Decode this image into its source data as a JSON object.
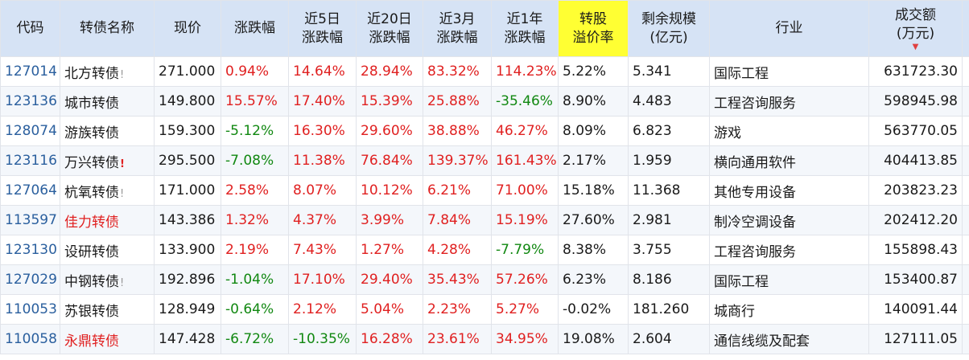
{
  "headers": {
    "code": "代码",
    "name": "转债名称",
    "price": "现价",
    "change": "涨跌幅",
    "chg5_l1": "近5日",
    "chg5_l2": "涨跌幅",
    "chg20_l1": "近20日",
    "chg20_l2": "涨跌幅",
    "chg3m_l1": "近3月",
    "chg3m_l2": "涨跌幅",
    "chg1y_l1": "近1年",
    "chg1y_l2": "涨跌幅",
    "premium_l1": "转股",
    "premium_l2": "溢价率",
    "remain_l1": "剩余规模",
    "remain_l2": "(亿元)",
    "industry": "行业",
    "volume_l1": "成交额",
    "volume_l2": "(万元)",
    "sort_icon": "▼"
  },
  "highlight_color": "#ffff33",
  "rows": [
    {
      "code": "127014",
      "name": "北方转债",
      "flag": "!",
      "flag_strong": false,
      "name_red": false,
      "price": "271.000",
      "change": "0.94%",
      "chg5": "14.64%",
      "chg20": "28.94%",
      "chg3m": "83.32%",
      "chg1y": "114.23%",
      "premium": "5.22%",
      "remain": "5.341",
      "industry": "国际工程",
      "volume": "631723.30"
    },
    {
      "code": "123136",
      "name": "城市转债",
      "flag": "",
      "flag_strong": false,
      "name_red": false,
      "price": "149.800",
      "change": "15.57%",
      "chg5": "17.40%",
      "chg20": "15.39%",
      "chg3m": "25.88%",
      "chg1y": "-35.46%",
      "premium": "8.90%",
      "remain": "4.483",
      "industry": "工程咨询服务",
      "volume": "598945.98"
    },
    {
      "code": "128074",
      "name": "游族转债",
      "flag": "",
      "flag_strong": false,
      "name_red": false,
      "price": "159.300",
      "change": "-5.12%",
      "chg5": "16.30%",
      "chg20": "29.60%",
      "chg3m": "38.88%",
      "chg1y": "46.27%",
      "premium": "8.09%",
      "remain": "6.823",
      "industry": "游戏",
      "volume": "563770.05"
    },
    {
      "code": "123116",
      "name": "万兴转债",
      "flag": "!",
      "flag_strong": true,
      "name_red": false,
      "price": "295.500",
      "change": "-7.08%",
      "chg5": "11.38%",
      "chg20": "76.84%",
      "chg3m": "139.37%",
      "chg1y": "161.43%",
      "premium": "2.17%",
      "remain": "1.959",
      "industry": "横向通用软件",
      "volume": "404413.85"
    },
    {
      "code": "127064",
      "name": "杭氧转债",
      "flag": "!",
      "flag_strong": false,
      "name_red": false,
      "price": "171.000",
      "change": "2.58%",
      "chg5": "8.07%",
      "chg20": "10.12%",
      "chg3m": "6.21%",
      "chg1y": "71.00%",
      "premium": "15.18%",
      "remain": "11.368",
      "industry": "其他专用设备",
      "volume": "203823.23"
    },
    {
      "code": "113597",
      "name": "佳力转债",
      "flag": "",
      "flag_strong": false,
      "name_red": true,
      "price": "143.386",
      "change": "1.32%",
      "chg5": "4.37%",
      "chg20": "3.99%",
      "chg3m": "7.84%",
      "chg1y": "15.19%",
      "premium": "27.60%",
      "remain": "2.981",
      "industry": "制冷空调设备",
      "volume": "202412.20"
    },
    {
      "code": "123130",
      "name": "设研转债",
      "flag": "",
      "flag_strong": false,
      "name_red": false,
      "price": "133.900",
      "change": "2.19%",
      "chg5": "7.43%",
      "chg20": "1.27%",
      "chg3m": "4.28%",
      "chg1y": "-7.79%",
      "premium": "8.38%",
      "remain": "3.755",
      "industry": "工程咨询服务",
      "volume": "155898.43"
    },
    {
      "code": "127029",
      "name": "中钢转债",
      "flag": "!",
      "flag_strong": false,
      "name_red": false,
      "price": "192.896",
      "change": "-1.04%",
      "chg5": "17.10%",
      "chg20": "29.40%",
      "chg3m": "35.43%",
      "chg1y": "57.26%",
      "premium": "6.23%",
      "remain": "8.186",
      "industry": "国际工程",
      "volume": "153400.87"
    },
    {
      "code": "110053",
      "name": "苏银转债",
      "flag": "",
      "flag_strong": false,
      "name_red": false,
      "price": "128.949",
      "change": "-0.64%",
      "chg5": "2.12%",
      "chg20": "5.04%",
      "chg3m": "2.23%",
      "chg1y": "5.27%",
      "premium": "-0.02%",
      "remain": "181.260",
      "industry": "城商行",
      "volume": "140091.44"
    },
    {
      "code": "110058",
      "name": "永鼎转债",
      "flag": "",
      "flag_strong": false,
      "name_red": true,
      "price": "147.428",
      "change": "-6.72%",
      "chg5": "-10.35%",
      "chg20": "16.28%",
      "chg3m": "23.61%",
      "chg1y": "34.95%",
      "premium": "19.08%",
      "remain": "2.604",
      "industry": "通信线缆及配套",
      "volume": "127111.05"
    }
  ]
}
